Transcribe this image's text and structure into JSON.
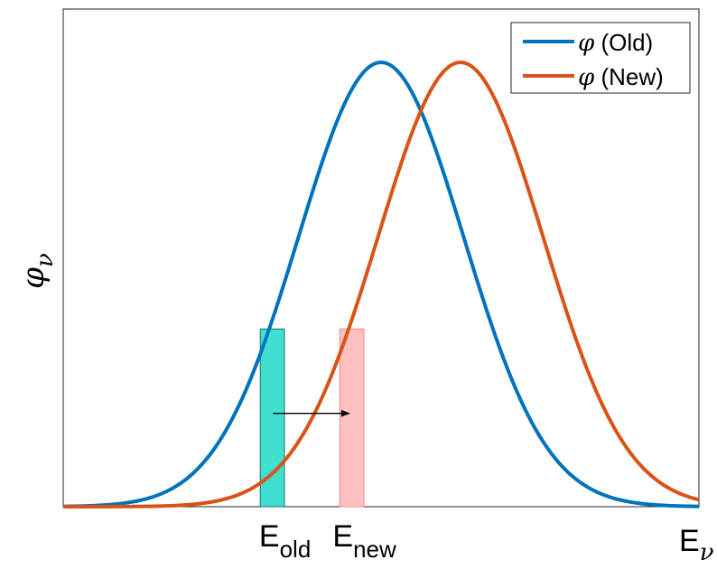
{
  "chart_data": {
    "type": "line",
    "title": "",
    "xlabel": "E",
    "xlabel_sub": "ν",
    "ylabel": "φ",
    "ylabel_sub": "ν",
    "xlim": [
      0,
      1
    ],
    "ylim": [
      0,
      1.12
    ],
    "grid": false,
    "legend_position": "top-right",
    "series": [
      {
        "name_symbol": "φ",
        "name_text": " (Old)",
        "color": "#0072BD",
        "center": 0.5,
        "peak": 1.0,
        "width": 0.13
      },
      {
        "name_symbol": "φ",
        "name_text": " (New)",
        "color": "#D95319",
        "center": 0.625,
        "peak": 1.0,
        "width": 0.13
      }
    ],
    "bins": [
      {
        "label": "E",
        "label_sub": "old",
        "x0": 0.31,
        "x1": 0.348,
        "height": 0.4,
        "fill": "#40E0D0",
        "stroke": "#1a6f66"
      },
      {
        "label": "E",
        "label_sub": "new",
        "x0": 0.435,
        "x1": 0.473,
        "height": 0.4,
        "fill": "#FFC0C0",
        "stroke": "#f08a8a"
      }
    ],
    "arrow": {
      "from": [
        0.33,
        0.21
      ],
      "to": [
        0.45,
        0.21
      ]
    }
  }
}
